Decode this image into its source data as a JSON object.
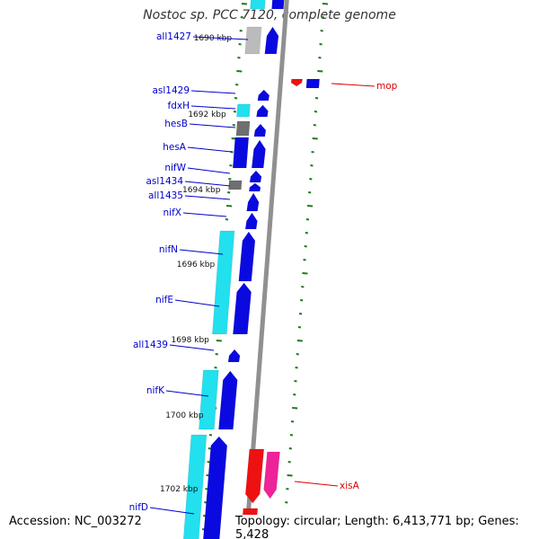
{
  "title": "Nostoc sp. PCC 7120, complete genome",
  "footer": {
    "accession": "Accession: NC_003272",
    "topology": "Topology: circular; Length: 6,413,771 bp; Genes: 5,428"
  },
  "colors": {
    "background": "#ffffff",
    "backbone": "#909090",
    "tick": "#1f7a1f",
    "forward_gene": "#0a0ae0",
    "cyan_gene": "#22e0ee",
    "grey_gene": "#6f6f6f",
    "red_gene": "#ee1111",
    "magenta_gene": "#ee2299",
    "blue_label": "#0000cc",
    "red_label": "#dd0000"
  },
  "scale_labels": [
    "1690 kbp",
    "1692 kbp",
    "1694 kbp",
    "1696 kbp",
    "1698 kbp",
    "1700 kbp",
    "1702 kbp"
  ],
  "gene_labels": [
    {
      "name": "all1427",
      "color": "blue"
    },
    {
      "name": "asl1429",
      "color": "blue"
    },
    {
      "name": "fdxH",
      "color": "blue"
    },
    {
      "name": "hesB",
      "color": "blue"
    },
    {
      "name": "hesA",
      "color": "blue"
    },
    {
      "name": "nifW",
      "color": "blue"
    },
    {
      "name": "asl1434",
      "color": "blue"
    },
    {
      "name": "all1435",
      "color": "blue"
    },
    {
      "name": "nifX",
      "color": "blue"
    },
    {
      "name": "nifN",
      "color": "blue"
    },
    {
      "name": "nifE",
      "color": "blue"
    },
    {
      "name": "all1439",
      "color": "blue"
    },
    {
      "name": "nifK",
      "color": "blue"
    },
    {
      "name": "nifD",
      "color": "blue"
    },
    {
      "name": "mop",
      "color": "red"
    },
    {
      "name": "xisA",
      "color": "red"
    }
  ]
}
